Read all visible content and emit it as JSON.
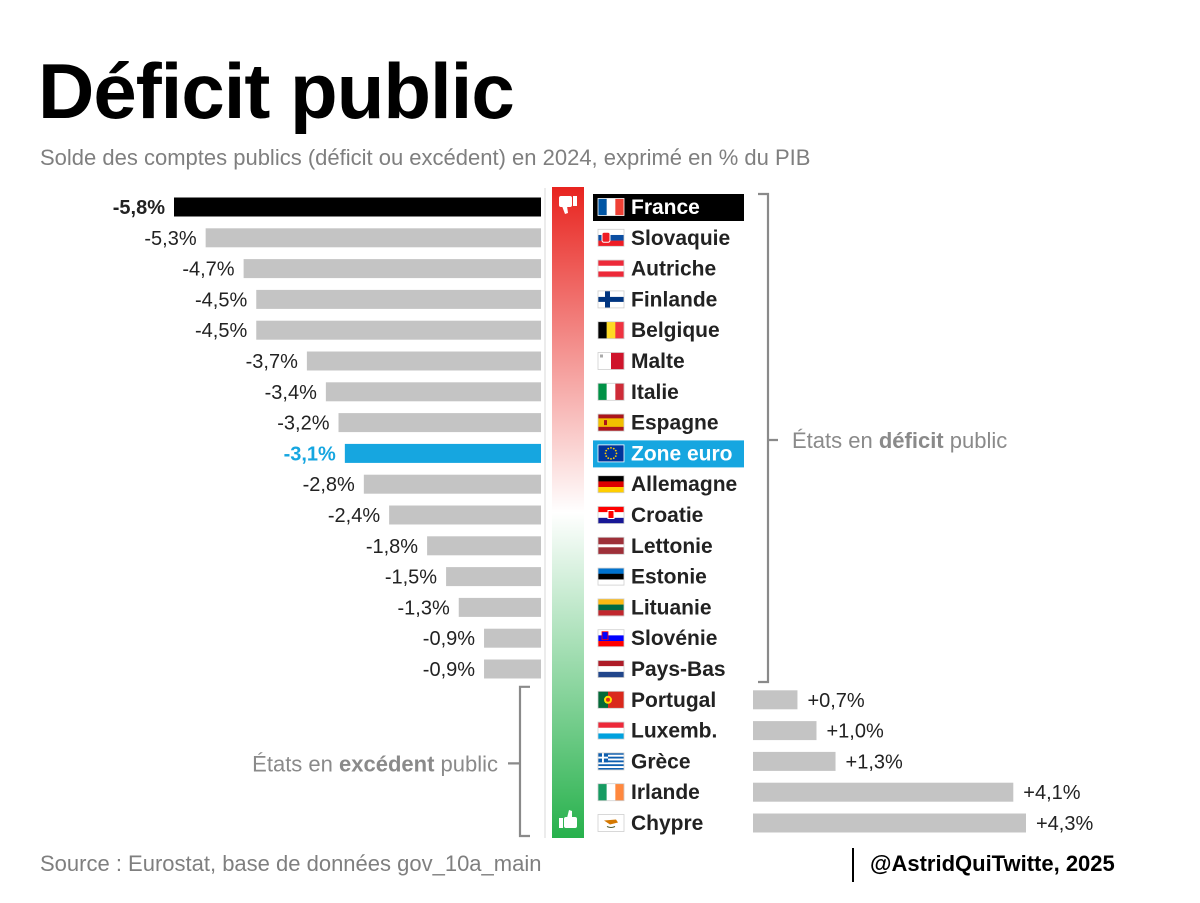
{
  "title": "Déficit public",
  "subtitle": "Solde des comptes publics (déficit ou excédent) en 2024, exprimé en % du PIB",
  "source": "Source : Eurostat, base de données gov_10a_main",
  "credit": "@AstridQuiTwitte, 2025",
  "colors": {
    "bar_default": "#c4c4c4",
    "bar_france": "#000000",
    "bar_euro": "#16a6e0",
    "label_text": "#222222",
    "label_euro": "#16a6e0",
    "bracket": "#8a8a8a",
    "gradient_top": "#e8241f",
    "gradient_mid": "#ffffff",
    "gradient_bottom": "#27b14c"
  },
  "icons": {
    "top": "thumbs-down-icon",
    "bottom": "thumbs-up-icon"
  },
  "chart_data": {
    "type": "bar",
    "orientation": "horizontal",
    "unit": "% du PIB",
    "categories": [
      "France",
      "Slovaquie",
      "Autriche",
      "Finlande",
      "Belgique",
      "Malte",
      "Italie",
      "Espagne",
      "Zone euro",
      "Allemagne",
      "Croatie",
      "Lettonie",
      "Estonie",
      "Lituanie",
      "Slovénie",
      "Pays-Bas",
      "Portugal",
      "Luxemb.",
      "Grèce",
      "Irlande",
      "Chypre"
    ],
    "values": [
      -5.8,
      -5.3,
      -4.7,
      -4.5,
      -4.5,
      -3.7,
      -3.4,
      -3.2,
      -3.1,
      -2.8,
      -2.4,
      -1.8,
      -1.5,
      -1.3,
      -0.9,
      -0.9,
      0.7,
      1.0,
      1.3,
      4.1,
      4.3
    ],
    "value_labels": [
      "-5,8%",
      "-5,3%",
      "-4,7%",
      "-4,5%",
      "-4,5%",
      "-3,7%",
      "-3,4%",
      "-3,2%",
      "-3,1%",
      "-2,8%",
      "-2,4%",
      "-1,8%",
      "-1,5%",
      "-1,3%",
      "-0,9%",
      "-0,9%",
      "+0,7%",
      "+1,0%",
      "+1,3%",
      "+4,1%",
      "+4,3%"
    ],
    "highlight": {
      "France": "black",
      "Zone euro": "blue"
    },
    "groups": [
      {
        "label_parts": [
          "États en ",
          "déficit",
          " public"
        ],
        "categories_from": "France",
        "categories_to": "Pays-Bas"
      },
      {
        "label_parts": [
          "États en ",
          "excédent",
          " public"
        ],
        "categories_from": "Portugal",
        "categories_to": "Chypre"
      }
    ]
  }
}
